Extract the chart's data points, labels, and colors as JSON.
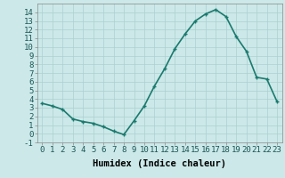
{
  "x": [
    0,
    1,
    2,
    3,
    4,
    5,
    6,
    7,
    8,
    9,
    10,
    11,
    12,
    13,
    14,
    15,
    16,
    17,
    18,
    19,
    20,
    21,
    22,
    23
  ],
  "y": [
    3.5,
    3.2,
    2.8,
    1.7,
    1.4,
    1.2,
    0.8,
    0.3,
    -0.1,
    1.5,
    3.2,
    5.5,
    7.5,
    9.8,
    11.5,
    13.0,
    13.8,
    14.3,
    13.5,
    11.2,
    9.5,
    6.5,
    6.3,
    3.7
  ],
  "line_color": "#1a7a6e",
  "bg_color": "#cce8e8",
  "grid_color": "#aad0d0",
  "xlabel": "Humidex (Indice chaleur)",
  "xlim": [
    -0.5,
    23.5
  ],
  "ylim": [
    -1,
    15
  ],
  "yticks": [
    -1,
    0,
    1,
    2,
    3,
    4,
    5,
    6,
    7,
    8,
    9,
    10,
    11,
    12,
    13,
    14
  ],
  "xticks": [
    0,
    1,
    2,
    3,
    4,
    5,
    6,
    7,
    8,
    9,
    10,
    11,
    12,
    13,
    14,
    15,
    16,
    17,
    18,
    19,
    20,
    21,
    22,
    23
  ],
  "marker": "+",
  "marker_size": 3,
  "line_width": 1.2,
  "xlabel_fontsize": 7.5,
  "tick_fontsize": 6.5
}
